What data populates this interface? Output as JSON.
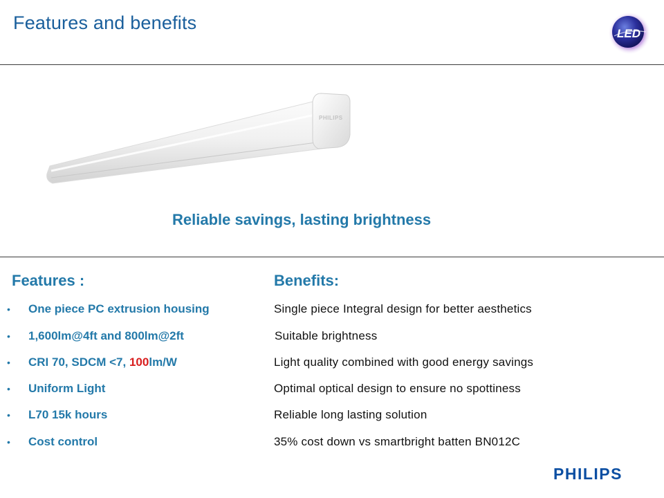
{
  "header": {
    "title": "Features and benefits",
    "logo_text": "LED",
    "logo_icon": "led-globe-logo"
  },
  "product": {
    "image": "led-batten-light-fixture",
    "brand_mark": "PHILIPS"
  },
  "tagline": "Reliable savings, lasting brightness",
  "columns": {
    "features_heading": "Features :",
    "benefits_heading": "Benefits:"
  },
  "rows": [
    {
      "feature": "One piece PC extrusion housing",
      "benefit": "Single piece Integral design for better aesthetics"
    },
    {
      "feature": "1,600lm@4ft and 800lm@2ft",
      "benefit": "Suitable brightness"
    },
    {
      "feature_prefix": "CRI 70, SDCM <7, ",
      "feature_highlight": "100",
      "feature_suffix": "lm/W",
      "benefit": "Light quality combined with good energy savings"
    },
    {
      "feature": "Uniform Light",
      "benefit": "Optimal optical design to ensure no spottiness"
    },
    {
      "feature": "L70 15k hours",
      "benefit": "Reliable long lasting solution"
    },
    {
      "feature": "Cost control",
      "benefit": "35% cost down vs smartbright batten BN012C"
    }
  ],
  "bullet_glyph": "•",
  "footer": {
    "brand": "PHILIPS"
  },
  "colors": {
    "title": "#1a5f9c",
    "accent": "#2379a9",
    "highlight": "#d81e1e",
    "brand": "#0b4ea2"
  }
}
